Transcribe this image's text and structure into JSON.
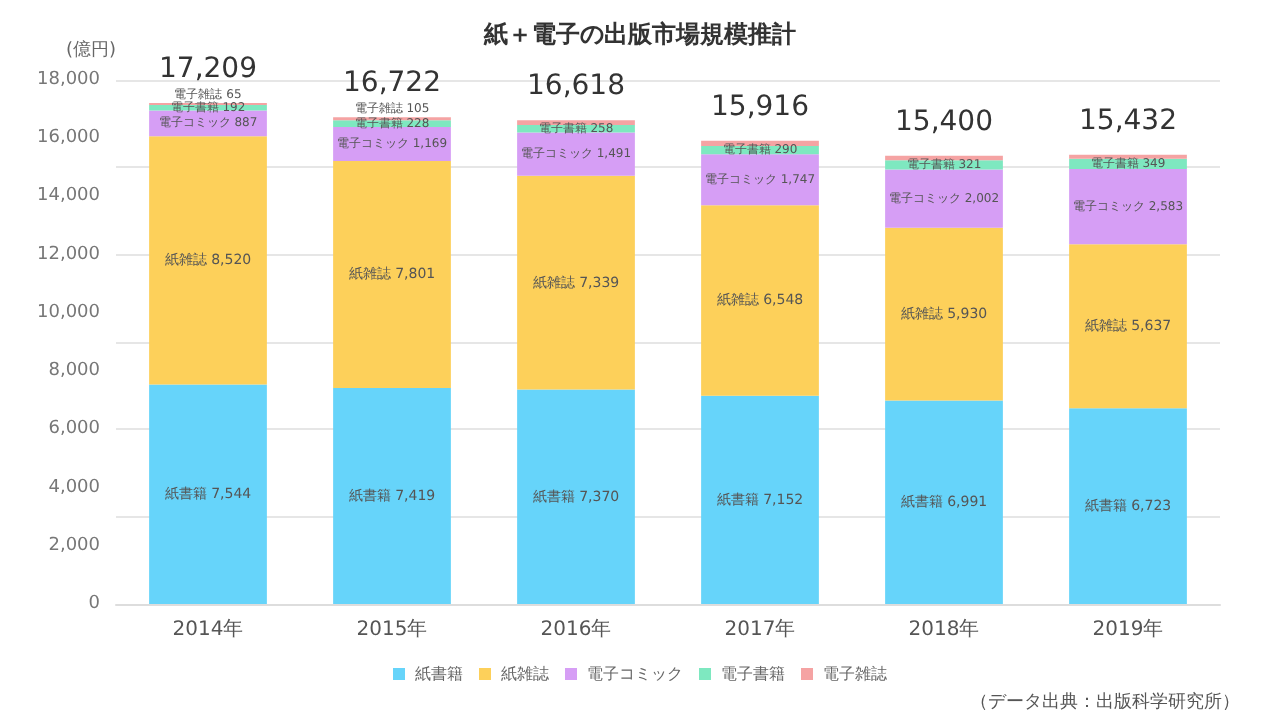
{
  "chart_data": {
    "type": "bar",
    "stacked": true,
    "title": "紙＋電子の出版市場規模推計",
    "ylabel": "(億円)",
    "categories": [
      "2014年",
      "2015年",
      "2016年",
      "2017年",
      "2018年",
      "2019年"
    ],
    "series": [
      {
        "name": "紙書籍",
        "color": "#66d4fa",
        "values": [
          7544,
          7419,
          7370,
          7152,
          6991,
          6723
        ],
        "value_labels": [
          "紙書籍 7,544",
          "紙書籍 7,419",
          "紙書籍 7,370",
          "紙書籍 7,152",
          "紙書籍 6,991",
          "紙書籍 6,723"
        ]
      },
      {
        "name": "紙雑誌",
        "color": "#fdd05a",
        "values": [
          8520,
          7801,
          7339,
          6548,
          5930,
          5637
        ],
        "value_labels": [
          "紙雑誌 8,520",
          "紙雑誌 7,801",
          "紙雑誌 7,339",
          "紙雑誌 6,548",
          "紙雑誌 5,930",
          "紙雑誌 5,637"
        ]
      },
      {
        "name": "電子コミック",
        "color": "#d69ef5",
        "values": [
          887,
          1169,
          1491,
          1747,
          2002,
          2583
        ],
        "value_labels": [
          "電子コミック 887",
          "電子コミック 1,169",
          "電子コミック 1,491",
          "電子コミック 1,747",
          "電子コミック 2,002",
          "電子コミック 2,583"
        ]
      },
      {
        "name": "電子書籍",
        "color": "#7ee8c0",
        "values": [
          192,
          228,
          258,
          290,
          321,
          349
        ],
        "value_labels": [
          "電子書籍 192",
          "電子書籍 228",
          "電子書籍 258",
          "電子書籍 290",
          "電子書籍 321",
          "電子書籍 349"
        ]
      },
      {
        "name": "電子雑誌",
        "color": "#f5a3a3",
        "values": [
          65,
          105,
          160,
          179,
          156,
          140
        ],
        "value_labels": [
          "電子雑誌 65",
          "電子雑誌 105",
          null,
          null,
          null,
          null
        ]
      }
    ],
    "totals": [
      "17,209",
      "16,722",
      "16,618",
      "15,916",
      "15,400",
      "15,432"
    ],
    "ylim": [
      0,
      18000
    ],
    "yticks": [
      0,
      {
        "value": 2000,
        "label": "2,000"
      },
      {
        "value": 4000,
        "label": "4,000"
      },
      {
        "value": 6000,
        "label": "6,000"
      },
      {
        "value": 8000,
        "label": "8,000"
      },
      {
        "value": 10000,
        "label": "10,000"
      },
      {
        "value": 12000,
        "label": "12,000"
      },
      {
        "value": 14000,
        "label": "14,000"
      },
      {
        "value": 16000,
        "label": "16,000"
      },
      {
        "value": 18000,
        "label": "18,000"
      }
    ],
    "grid": "y",
    "legend": "bottom",
    "annotations": [
      "（データ出典：出版科学研究所）"
    ]
  }
}
